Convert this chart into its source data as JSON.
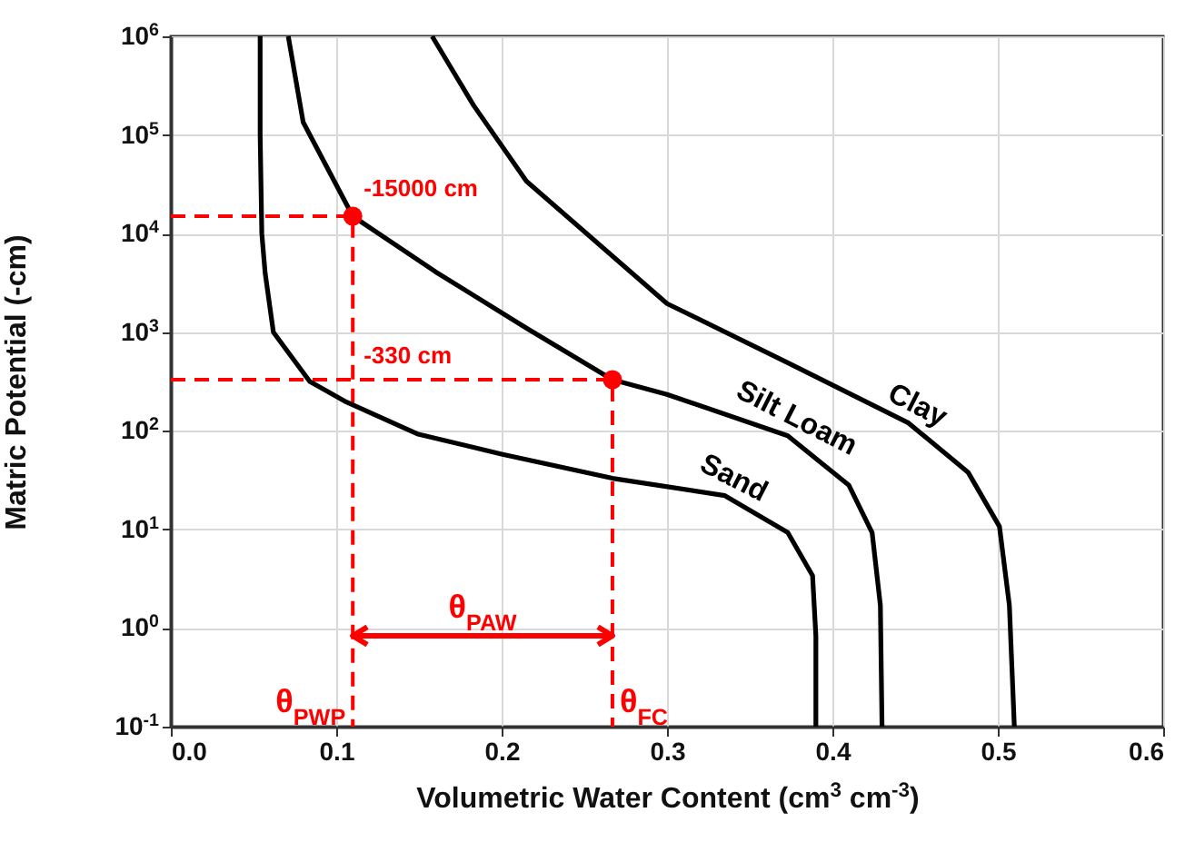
{
  "chart_data": {
    "type": "line",
    "xlabel": "Volumetric Water Content (cm$^{3}$ cm$^{-3}$)",
    "ylabel": "Matric Potential (-cm)",
    "xlim": [
      0,
      0.6
    ],
    "xticks": [
      {
        "value": 0,
        "label": "0.0"
      },
      0.1,
      0.2,
      0.3,
      0.4,
      0.5,
      0.6
    ],
    "ylim": [
      0.1,
      1000000
    ],
    "yticks": [
      {
        "value": 0.1,
        "label": "10$^{-1}$"
      },
      {
        "value": 1,
        "label": "10$^{0}$"
      },
      {
        "value": 10,
        "label": "10$^{1}$"
      },
      {
        "value": 100,
        "label": "10$^{2}$"
      },
      {
        "value": 1000,
        "label": "10$^{3}$"
      },
      {
        "value": 10000,
        "label": "10$^{4}$"
      },
      {
        "value": 100000,
        "label": "10$^{5}$"
      },
      {
        "value": 1000000,
        "label": "10$^{6}$"
      }
    ],
    "log": "y",
    "grid": true,
    "series": [
      {
        "type": "line",
        "color": "#ff0000",
        "line_style": "dashed",
        "x": [
          0,
          0.11,
          0.11
        ],
        "values": [
          15000,
          15000,
          0.1
        ]
      },
      {
        "type": "line",
        "color": "#ff0000",
        "line_style": "dashed",
        "x": [
          0,
          0.267,
          0.267
        ],
        "values": [
          330,
          330,
          0.1
        ]
      },
      {
        "name": "Sand",
        "color": "#000000",
        "x": [
          0.054,
          0.054,
          0.055,
          0.057,
          0.062,
          0.084,
          0.105,
          0.149,
          0.2,
          0.267,
          0.335,
          0.373,
          0.388,
          0.39,
          0.39
        ],
        "values": [
          1000000,
          100000,
          10000,
          4000,
          1000,
          316,
          200,
          93,
          58,
          33,
          22,
          9.3,
          3.4,
          0.83,
          0.1
        ]
      },
      {
        "name": "Silt Loam",
        "color": "#000000",
        "x": [
          0.071,
          0.08,
          0.11,
          0.16,
          0.215,
          0.267,
          0.3,
          0.373,
          0.41,
          0.424,
          0.429,
          0.43
        ],
        "values": [
          1000000,
          135000,
          15000,
          4100,
          1100,
          330,
          234,
          89,
          28,
          9.3,
          1.7,
          0.1
        ]
      },
      {
        "name": "Clay",
        "color": "#000000",
        "x": [
          0.158,
          0.183,
          0.215,
          0.3,
          0.373,
          0.446,
          0.482,
          0.501,
          0.507,
          0.51
        ],
        "values": [
          1000000,
          200000,
          34000,
          1950,
          490,
          120,
          38,
          10.7,
          1.7,
          0.1
        ]
      },
      {
        "type": "scatter",
        "color": "#ff0000",
        "marker": "circle",
        "x": [
          0.11,
          0.267
        ],
        "values": [
          15000,
          330
        ]
      }
    ],
    "annotations": [
      "-15000 cm",
      "-330 cm",
      "θ$_{PWP}$",
      "θ$_{FC}$",
      "θ$_{PAW}$"
    ]
  }
}
